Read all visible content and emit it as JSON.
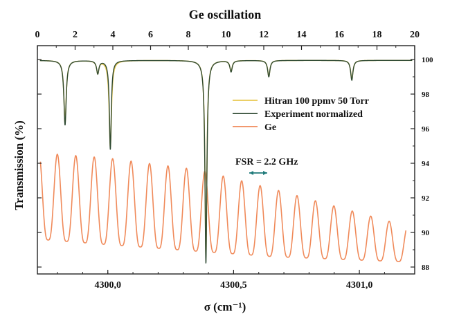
{
  "chart_data": {
    "type": "line",
    "title": "Ge oscillation",
    "xlabel_bottom": "σ (cm⁻¹)",
    "ylabel": "Transmission (%)",
    "bottom_axis": {
      "xlim": [
        4299.72,
        4301.22
      ],
      "ticks": [
        4300.0,
        4300.5,
        4301.0
      ],
      "tick_labels": [
        "4300,0",
        "4300,5",
        "4301,0"
      ]
    },
    "top_axis": {
      "xlim": [
        0,
        20
      ],
      "ticks": [
        0,
        2,
        4,
        6,
        8,
        10,
        12,
        14,
        16,
        18,
        20
      ],
      "tick_labels": [
        "0",
        "2",
        "4",
        "6",
        "8",
        "10",
        "12",
        "14",
        "16",
        "18",
        "20"
      ]
    },
    "ylim": [
      87.6,
      100.8
    ],
    "right_ticks": [
      88,
      90,
      92,
      94,
      96,
      98,
      100
    ],
    "right_tick_labels": [
      "88",
      "90",
      "92",
      "94",
      "96",
      "98",
      "100"
    ],
    "grid": false,
    "legend_position": "top-right",
    "legend": [
      {
        "label": "Hitran 100 ppmv 50 Torr",
        "color": "#e8c850"
      },
      {
        "label": "Experiment normalized",
        "color": "#2f4a33"
      },
      {
        "label": "Ge",
        "color": "#f08a5a"
      }
    ],
    "annotation": "FSR = 2.2 GHz",
    "series": [
      {
        "name": "Experiment normalized",
        "color": "#2f4a33",
        "baseline": 99.95,
        "absorption_lines": [
          {
            "x": 4299.83,
            "min_transmission": 96.2
          },
          {
            "x": 4299.96,
            "min_transmission": 99.2
          },
          {
            "x": 4300.01,
            "min_transmission": 94.8
          },
          {
            "x": 4300.39,
            "min_transmission": 88.2
          },
          {
            "x": 4300.49,
            "min_transmission": 99.3
          },
          {
            "x": 4300.64,
            "min_transmission": 99.0
          },
          {
            "x": 4300.97,
            "min_transmission": 98.8
          }
        ]
      },
      {
        "name": "Ge",
        "color": "#f08a5a",
        "fsr_cm1": 0.0733,
        "first_peak_x": 4299.726,
        "oscillation": [
          {
            "x": 4299.73,
            "max": 94.6,
            "min": 89.6
          },
          {
            "x": 4300.0,
            "max": 94.3,
            "min": 89.3
          },
          {
            "x": 4300.37,
            "max": 93.6,
            "min": 88.9
          },
          {
            "x": 4300.66,
            "max": 92.5,
            "min": 88.6
          },
          {
            "x": 4301.18,
            "max": 90.4,
            "min": 88.3
          }
        ]
      },
      {
        "name": "Hitran 100 ppmv 50 Torr",
        "color": "#e8c850",
        "same_lines_as": "Experiment normalized"
      }
    ]
  }
}
